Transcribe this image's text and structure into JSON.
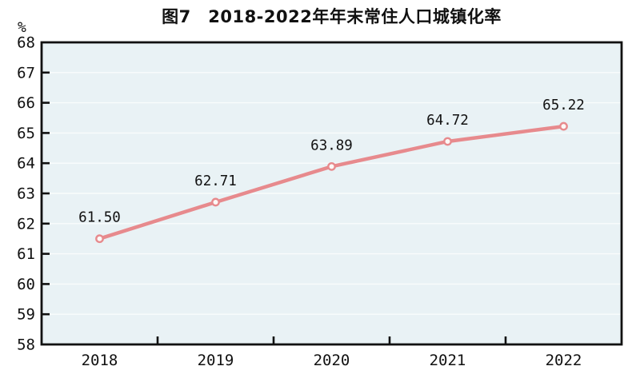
{
  "chart_data": {
    "type": "line",
    "title": "图7　2018-2022年年末常住人口城镇化率",
    "ylabel": "%",
    "categories": [
      "2018",
      "2019",
      "2020",
      "2021",
      "2022"
    ],
    "series": [
      {
        "name": "年末常住人口城镇化率",
        "values": [
          61.5,
          62.71,
          63.89,
          64.72,
          65.22
        ]
      }
    ],
    "data_labels": [
      "61.50",
      "62.71",
      "63.89",
      "64.72",
      "65.22"
    ],
    "ylim": [
      58,
      68
    ],
    "ytick_step": 1,
    "ytick_labels": [
      "68",
      "67",
      "66",
      "65",
      "64",
      "63",
      "62",
      "61",
      "60",
      "59",
      "58"
    ],
    "grid": "horizontal",
    "legend": "none",
    "colors": {
      "line": "#e78a8d",
      "marker_fill": "#fdf8f6",
      "marker_stroke": "#e78a8d",
      "plot_background": "#e9f2f5",
      "gridline": "#f9fcfc",
      "axis": "#111111",
      "text": "#111111",
      "page_background": "#ffffff"
    }
  }
}
